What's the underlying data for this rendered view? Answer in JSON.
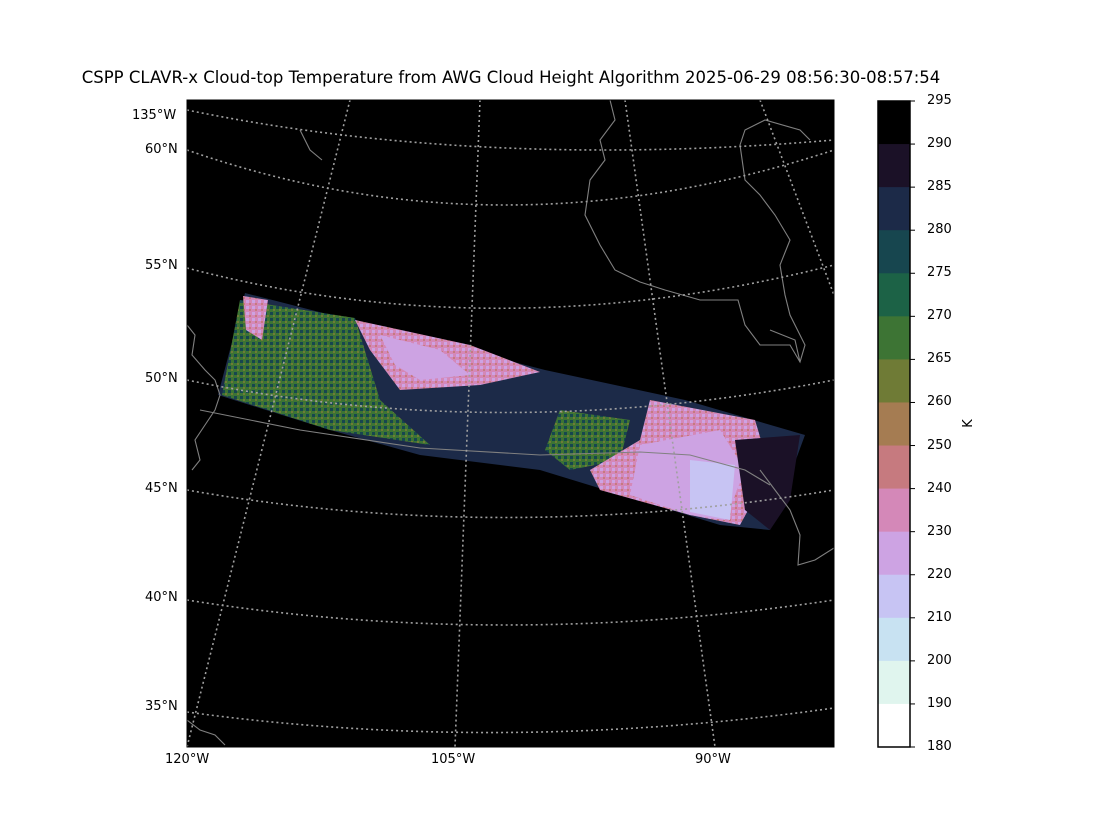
{
  "title": "CSPP CLAVR-x Cloud-top Temperature from AWG Cloud Height Algorithm 2025-06-29 08:56:30-08:57:54",
  "lat_labels": [
    "135°W",
    "60°N",
    "55°N",
    "50°N",
    "45°N",
    "40°N",
    "35°N"
  ],
  "lon_labels": [
    "120°W",
    "105°W",
    "90°W"
  ],
  "colorbar": {
    "unit": "K",
    "ticks": [
      "295",
      "290",
      "285",
      "280",
      "275",
      "270",
      "265",
      "260",
      "250",
      "240",
      "230",
      "220",
      "210",
      "200",
      "190",
      "180"
    ],
    "colors": [
      "#000000",
      "#1b1127",
      "#1c2a48",
      "#17464f",
      "#1c6246",
      "#3d7434",
      "#6f7b36",
      "#a57c52",
      "#c67a7f",
      "#d488b8",
      "#cda3e3",
      "#c7c4f3",
      "#c8e2f2",
      "#e0f5ee",
      "#ffffff"
    ]
  },
  "colors": {
    "background": "#000000",
    "coastline": "#808080",
    "graticule": "#a0a0a0"
  }
}
